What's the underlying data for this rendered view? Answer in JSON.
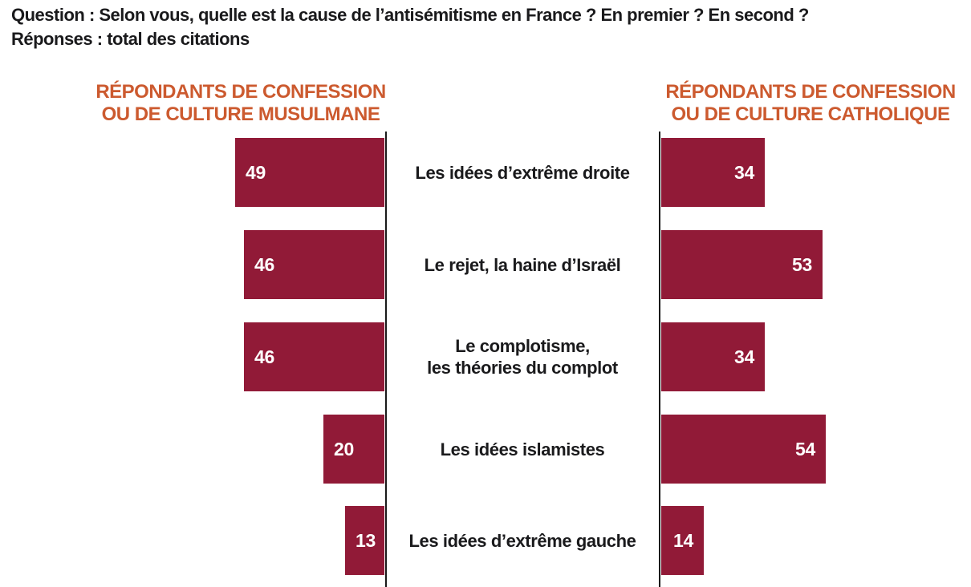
{
  "title": {
    "line1": "Question : Selon vous, quelle est la cause de l’antisémitisme en France ? En premier ? En second ?",
    "line2": "Réponses : total des citations"
  },
  "groups": {
    "left": {
      "line1": "RÉPONDANTS DE CONFESSION",
      "line2": "OU DE CULTURE MUSULMANE"
    },
    "right": {
      "line1": "RÉPONDANTS DE CONFESSION",
      "line2": "OU DE CULTURE CATHOLIQUE"
    }
  },
  "colors": {
    "bar": "#911A37",
    "header_accent": "#CC5A2F",
    "text": "#1A1A1C",
    "axis": "#1A1A1A",
    "value_text": "#FFFFFF"
  },
  "chart_data": {
    "type": "bar",
    "orientation": "diverging-horizontal",
    "title": "Question : Selon vous, quelle est la cause de l’antisémitisme en France ? En premier ? En second ? — Réponses : total des citations",
    "categories": [
      "Les idées d’extrême droite",
      "Le rejet, la haine d’Israël",
      "Le complotisme,\nles théories du complot",
      "Les idées islamistes",
      "Les idées d’extrême gauche"
    ],
    "series": [
      {
        "name": "Répondants de confession ou de culture musulmane",
        "side": "left",
        "values": [
          49,
          46,
          46,
          20,
          13
        ]
      },
      {
        "name": "Répondants de confession ou de culture catholique",
        "side": "right",
        "values": [
          34,
          53,
          34,
          54,
          14
        ]
      }
    ],
    "value_labels_shown": true,
    "xlim": [
      0,
      60
    ],
    "grid": false,
    "legend_position": "column headers above each side"
  }
}
